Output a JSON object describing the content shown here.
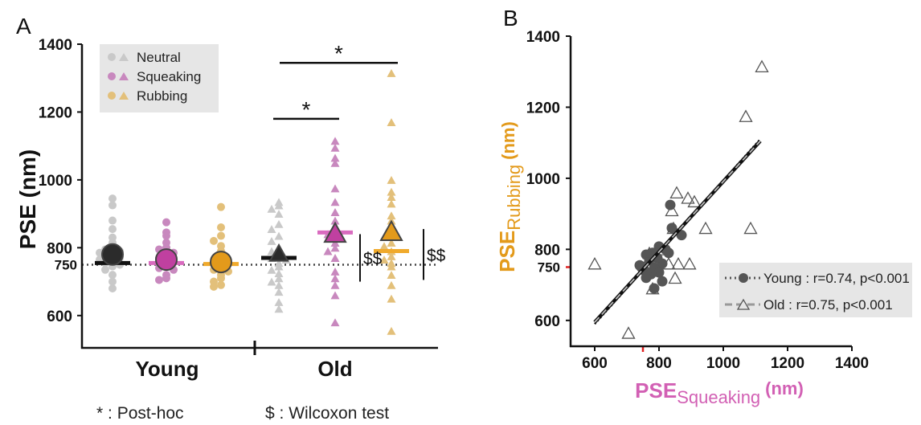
{
  "chart_data": [
    {
      "panel_label": "A",
      "type": "scatter",
      "ylabel": "PSE (nm)",
      "ylim": [
        500,
        1400
      ],
      "yticks": [
        600,
        800,
        1000,
        1200,
        1400
      ],
      "reference_line": {
        "value": 750,
        "label": "750",
        "style": "dotted"
      },
      "groups": [
        "Young",
        "Old"
      ],
      "legend": {
        "entries": [
          "Neutral",
          "Squeaking",
          "Rubbing"
        ],
        "placement": "top-left"
      },
      "colors": {
        "Neutral": "#c9c9c9",
        "Squeaking": "#c888be",
        "Rubbing": "#e3c07a",
        "mean_neutral": "#2b2b2b",
        "mean_squeaking": "#c040a0",
        "mean_rubbing": "#e39a1b",
        "median_neutral": "#111111",
        "median_squeaking": "#d96bbf",
        "median_rubbing": "#f0aa2c"
      },
      "series": [
        {
          "group": "Young",
          "condition": "Neutral",
          "marker": "circle",
          "mean": 780,
          "median": 755,
          "values": [
            945,
            925,
            880,
            855,
            830,
            815,
            800,
            795,
            790,
            785,
            780,
            775,
            770,
            765,
            760,
            755,
            750,
            745,
            735,
            720,
            700,
            680
          ]
        },
        {
          "group": "Young",
          "condition": "Squeaking",
          "marker": "circle",
          "mean": 765,
          "median": 755,
          "values": [
            875,
            845,
            835,
            815,
            800,
            795,
            785,
            775,
            770,
            760,
            755,
            745,
            740,
            735,
            720,
            710,
            705
          ]
        },
        {
          "group": "Young",
          "condition": "Rubbing",
          "marker": "circle",
          "mean": 758,
          "median": 752,
          "values": [
            920,
            860,
            835,
            820,
            805,
            790,
            770,
            760,
            745,
            735,
            730,
            720,
            710,
            700,
            690,
            685
          ]
        },
        {
          "group": "Old",
          "condition": "Neutral",
          "marker": "triangle",
          "mean": 780,
          "median": 770,
          "values": [
            935,
            925,
            915,
            900,
            870,
            855,
            835,
            820,
            800,
            790,
            780,
            770,
            765,
            755,
            745,
            735,
            725,
            710,
            700,
            690,
            670,
            640,
            620
          ]
        },
        {
          "group": "Old",
          "condition": "Squeaking",
          "marker": "triangle",
          "mean": 840,
          "median": 845,
          "values": [
            1115,
            1095,
            1065,
            1050,
            975,
            935,
            905,
            880,
            860,
            850,
            840,
            830,
            815,
            800,
            790,
            770,
            730,
            710,
            690,
            660,
            580
          ]
        },
        {
          "group": "Old",
          "condition": "Rubbing",
          "marker": "triangle",
          "mean": 845,
          "median": 790,
          "values": [
            1315,
            1170,
            1000,
            965,
            950,
            930,
            895,
            880,
            855,
            835,
            815,
            805,
            790,
            775,
            765,
            755,
            745,
            720,
            690,
            650,
            555
          ]
        }
      ],
      "annotations": [
        {
          "text": "*",
          "between": [
            "Old Neutral",
            "Old Squeaking"
          ],
          "y": 1180
        },
        {
          "text": "*",
          "between": [
            "Old Neutral",
            "Old Rubbing"
          ],
          "y": 1345
        },
        {
          "text": "$$",
          "condition": "Old Squeaking",
          "span": [
            700,
            840
          ]
        },
        {
          "text": "$$",
          "condition": "Old Rubbing",
          "span": [
            705,
            855
          ]
        }
      ],
      "footnotes": [
        {
          "symbol": "* : ",
          "text": "Post-hoc"
        },
        {
          "symbol": "$ : ",
          "text": "Wilcoxon test"
        }
      ]
    },
    {
      "panel_label": "B",
      "type": "scatter",
      "xlabel": {
        "prefix": "PSE",
        "subscript": "Squeaking",
        "unit": "(nm)"
      },
      "ylabel": {
        "prefix": "PSE",
        "subscript": "Rubbing",
        "unit": "(nm)"
      },
      "xlim": [
        525,
        1400
      ],
      "ylim": [
        525,
        1400
      ],
      "xticks": [
        600,
        800,
        1000,
        1200,
        1400
      ],
      "yticks": [
        600,
        800,
        1000,
        1200,
        1400
      ],
      "reference_marker": {
        "value": 750,
        "label": "750",
        "color": "#e02020"
      },
      "colors": {
        "xlabel": "#d260b4",
        "ylabel": "#e39a1b",
        "young": "#555555",
        "old_stroke": "#555555",
        "legend_bg": "#e6e6e6"
      },
      "series": [
        {
          "name": "Young",
          "marker": "filled-circle",
          "points": [
            [
              835,
              925
            ],
            [
              840,
              860
            ],
            [
              870,
              840
            ],
            [
              800,
              808
            ],
            [
              820,
              800
            ],
            [
              780,
              790
            ],
            [
              760,
              785
            ],
            [
              795,
              775
            ],
            [
              770,
              770
            ],
            [
              810,
              760
            ],
            [
              740,
              755
            ],
            [
              785,
              748
            ],
            [
              755,
              740
            ],
            [
              800,
              735
            ],
            [
              775,
              730
            ],
            [
              760,
              720
            ],
            [
              810,
              710
            ],
            [
              785,
              690
            ],
            [
              745,
              750
            ],
            [
              830,
              790
            ]
          ]
        },
        {
          "name": "Old",
          "marker": "open-triangle",
          "points": [
            [
              1120,
              1315
            ],
            [
              1070,
              1175
            ],
            [
              855,
              960
            ],
            [
              890,
              945
            ],
            [
              910,
              935
            ],
            [
              840,
              910
            ],
            [
              945,
              860
            ],
            [
              1085,
              860
            ],
            [
              845,
              860
            ],
            [
              810,
              800
            ],
            [
              770,
              790
            ],
            [
              780,
              780
            ],
            [
              860,
              760
            ],
            [
              895,
              760
            ],
            [
              830,
              760
            ],
            [
              600,
              760
            ],
            [
              755,
              750
            ],
            [
              850,
              720
            ],
            [
              780,
              690
            ],
            [
              705,
              565
            ]
          ]
        }
      ],
      "fit_lines": [
        {
          "name": "Young",
          "style": "dotted",
          "x": [
            600,
            1115
          ],
          "y": [
            590,
            1110
          ]
        },
        {
          "name": "Old",
          "style": "dashed",
          "x": [
            600,
            1115
          ],
          "y": [
            595,
            1105
          ]
        }
      ],
      "legend": {
        "placement": "bottom-right",
        "entries": [
          {
            "name": "Young",
            "label": "Young : r=0.74, p<0.001"
          },
          {
            "name": "Old",
            "label": "Old : r=0.75, p<0.001"
          }
        ]
      }
    }
  ]
}
